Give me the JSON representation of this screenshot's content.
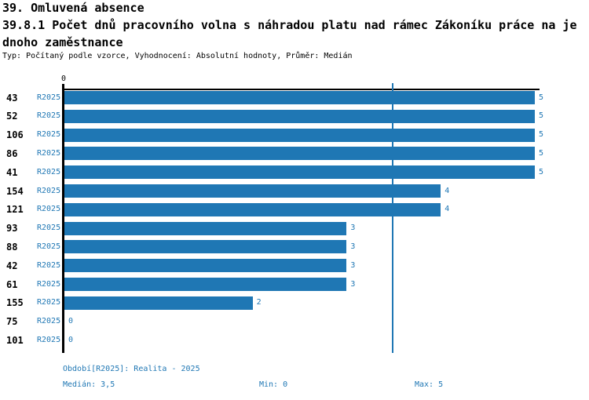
{
  "page": {
    "background": "#ffffff",
    "accent": "#1f77b4",
    "text_color": "#000000"
  },
  "header": {
    "title": "39. Omluvená absence",
    "subtitle_line1": "39.8.1 Počet dnů pracovního volna s náhradou platu nad rámec Zákoníku práce na je",
    "subtitle_line2": "dnoho zaměstnance",
    "meta": "Typ: Počítaný podle vzorce, Vyhodnocení: Absolutní hodnoty, Průměr: Medián"
  },
  "chart_data": {
    "type": "bar",
    "orientation": "horizontal",
    "title": "39.8.1 Počet dnů pracovního volna s náhradou platu nad rámec Zákoníku práce na jednoho zaměstnance",
    "categories": [
      "43",
      "52",
      "106",
      "86",
      "41",
      "154",
      "121",
      "93",
      "88",
      "42",
      "61",
      "155",
      "75",
      "101"
    ],
    "series_label": "R2025",
    "values": [
      5,
      5,
      5,
      5,
      5,
      4,
      4,
      3,
      3,
      3,
      3,
      2,
      0,
      0
    ],
    "value_labels": [
      "5",
      "5",
      "5",
      "5",
      "5",
      "4",
      "4",
      "3",
      "3",
      "3",
      "3",
      "2",
      "0",
      "0"
    ],
    "xlim": [
      0,
      5
    ],
    "x_axis_tick": "0",
    "median_line": 3.5,
    "bar_color": "#1f77b4",
    "grid": false,
    "legend_position": "none"
  },
  "footer": {
    "period": "Období[R2025]: Realita - 2025",
    "median": "Medián: 3,5",
    "min": "Min: 0",
    "max": "Max: 5"
  }
}
